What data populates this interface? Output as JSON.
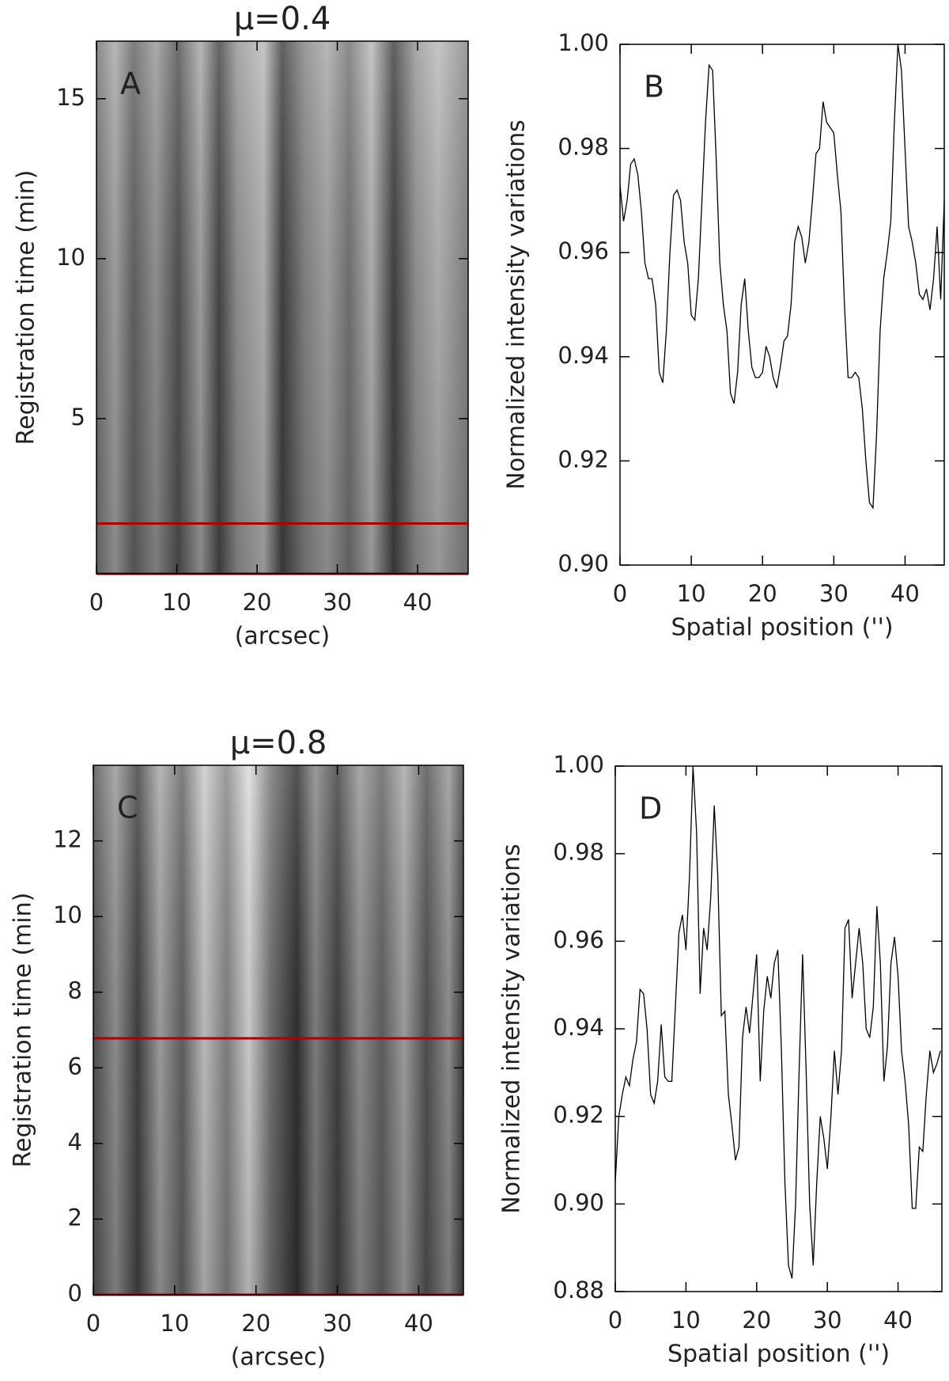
{
  "chart_data": [
    {
      "type": "image",
      "title": "μ=0.4",
      "panel_label": "A",
      "xlabel": "(arcsec)",
      "ylabel": "Registration time (min)",
      "xlim": [
        0,
        46.3
      ],
      "xticks": [
        0,
        10,
        20,
        30,
        40
      ],
      "ylim": [
        0.15,
        16.8
      ],
      "yticks": [
        5,
        10,
        15
      ],
      "hlines": [
        {
          "value": 1.72,
          "color": "#b00000"
        },
        {
          "value": 0.15,
          "color": "#b00000"
        }
      ]
    },
    {
      "type": "line",
      "panel_label": "B",
      "xlabel": "Spatial position ('')",
      "ylabel": "Normalized intensity variations",
      "xlim": [
        0,
        45.5
      ],
      "xticks": [
        0,
        10,
        20,
        30,
        40
      ],
      "ylim": [
        0.9,
        1.0
      ],
      "yticks": [
        {
          "value": 0.9,
          "label": "0.90"
        },
        0.92,
        0.94,
        0.96,
        0.98,
        {
          "value": 1.0,
          "label": "1.00"
        }
      ],
      "color": "#000000",
      "x": [
        0,
        0.5,
        1,
        1.5,
        2,
        2.5,
        3,
        3.5,
        4,
        4.5,
        5,
        5.5,
        6,
        6.5,
        7,
        7.5,
        8,
        8.5,
        9,
        9.5,
        10,
        10.5,
        11,
        11.5,
        12,
        12.5,
        13,
        13.5,
        14,
        14.5,
        15,
        15.5,
        16,
        16.5,
        17,
        17.5,
        18,
        18.5,
        19,
        19.5,
        20,
        20.5,
        21,
        21.5,
        22,
        22.5,
        23,
        23.5,
        24,
        24.5,
        25,
        25.5,
        26,
        26.5,
        27,
        27.5,
        28,
        28.5,
        29,
        29.5,
        30,
        30.5,
        31,
        31.5,
        32,
        32.5,
        33,
        33.5,
        34,
        34.5,
        35,
        35.5,
        36,
        36.5,
        37,
        37.5,
        38,
        38.5,
        39,
        39.5,
        40,
        40.5,
        41,
        41.5,
        42,
        42.5,
        43,
        43.5,
        44,
        44.5,
        45,
        45.5
      ],
      "values": [
        0.973,
        0.966,
        0.97,
        0.977,
        0.978,
        0.975,
        0.968,
        0.958,
        0.955,
        0.955,
        0.95,
        0.937,
        0.935,
        0.945,
        0.96,
        0.971,
        0.972,
        0.97,
        0.962,
        0.958,
        0.948,
        0.947,
        0.955,
        0.97,
        0.985,
        0.996,
        0.995,
        0.978,
        0.958,
        0.95,
        0.945,
        0.933,
        0.931,
        0.937,
        0.95,
        0.955,
        0.945,
        0.938,
        0.936,
        0.936,
        0.937,
        0.942,
        0.94,
        0.936,
        0.934,
        0.938,
        0.943,
        0.944,
        0.95,
        0.962,
        0.965,
        0.963,
        0.958,
        0.962,
        0.97,
        0.979,
        0.98,
        0.989,
        0.985,
        0.984,
        0.983,
        0.975,
        0.968,
        0.95,
        0.936,
        0.936,
        0.937,
        0.936,
        0.93,
        0.92,
        0.912,
        0.911,
        0.925,
        0.945,
        0.955,
        0.96,
        0.966,
        0.985,
        1.0,
        0.995,
        0.98,
        0.965,
        0.962,
        0.958,
        0.952,
        0.951,
        0.953,
        0.949,
        0.955,
        0.965,
        0.951,
        0.97
      ]
    },
    {
      "type": "image",
      "title": "μ=0.8",
      "panel_label": "C",
      "xlabel": "(arcsec)",
      "ylabel": "Registration time (min)",
      "xlim": [
        0,
        45.5
      ],
      "xticks": [
        0,
        10,
        20,
        30,
        40
      ],
      "ylim": [
        0,
        14
      ],
      "yticks": [
        0,
        2,
        4,
        6,
        8,
        10,
        12
      ],
      "hlines": [
        {
          "value": 6.78,
          "color": "#b00000"
        },
        {
          "value": 0,
          "color": "#b00000"
        }
      ]
    },
    {
      "type": "line",
      "panel_label": "D",
      "xlabel": "Spatial position ('')",
      "ylabel": "Normalized intensity variations",
      "xlim": [
        0,
        46.2
      ],
      "xticks": [
        0,
        10,
        20,
        30,
        40
      ],
      "ylim": [
        0.88,
        1.0
      ],
      "yticks": [
        0.88,
        {
          "value": 0.9,
          "label": "0.90"
        },
        0.92,
        0.94,
        0.96,
        0.98,
        {
          "value": 1.0,
          "label": "1.00"
        }
      ],
      "color": "#000000",
      "x": [
        0,
        0.5,
        1,
        1.5,
        2,
        2.5,
        3,
        3.5,
        4,
        4.5,
        5,
        5.5,
        6,
        6.5,
        7,
        7.5,
        8,
        8.5,
        9,
        9.5,
        10,
        10.5,
        11,
        11.5,
        12,
        12.5,
        13,
        13.5,
        14,
        14.5,
        15,
        15.5,
        16,
        16.5,
        17,
        17.5,
        18,
        18.5,
        19,
        19.5,
        20,
        20.5,
        21,
        21.5,
        22,
        22.5,
        23,
        23.5,
        24,
        24.5,
        25,
        25.5,
        26,
        26.5,
        27,
        27.5,
        28,
        28.5,
        29,
        29.5,
        30,
        30.5,
        31,
        31.5,
        32,
        32.5,
        33,
        33.5,
        34,
        34.5,
        35,
        35.5,
        36,
        36.5,
        37,
        37.5,
        38,
        38.5,
        39,
        39.5,
        40,
        40.5,
        41,
        41.5,
        42,
        42.5,
        43,
        43.5,
        44,
        44.5,
        45,
        45.5,
        46
      ],
      "values": [
        0.905,
        0.92,
        0.925,
        0.929,
        0.927,
        0.933,
        0.937,
        0.949,
        0.948,
        0.94,
        0.925,
        0.923,
        0.928,
        0.941,
        0.929,
        0.928,
        0.928,
        0.945,
        0.962,
        0.966,
        0.958,
        0.975,
        1.0,
        0.985,
        0.948,
        0.963,
        0.958,
        0.97,
        0.991,
        0.975,
        0.943,
        0.944,
        0.925,
        0.918,
        0.91,
        0.913,
        0.938,
        0.945,
        0.939,
        0.948,
        0.957,
        0.928,
        0.944,
        0.952,
        0.947,
        0.955,
        0.958,
        0.935,
        0.905,
        0.886,
        0.883,
        0.9,
        0.93,
        0.957,
        0.93,
        0.9,
        0.886,
        0.905,
        0.92,
        0.915,
        0.908,
        0.92,
        0.935,
        0.925,
        0.935,
        0.963,
        0.965,
        0.947,
        0.955,
        0.963,
        0.955,
        0.94,
        0.938,
        0.945,
        0.968,
        0.955,
        0.928,
        0.936,
        0.955,
        0.961,
        0.952,
        0.935,
        0.928,
        0.918,
        0.899,
        0.899,
        0.913,
        0.912,
        0.925,
        0.935,
        0.93,
        0.932,
        0.935
      ]
    }
  ]
}
